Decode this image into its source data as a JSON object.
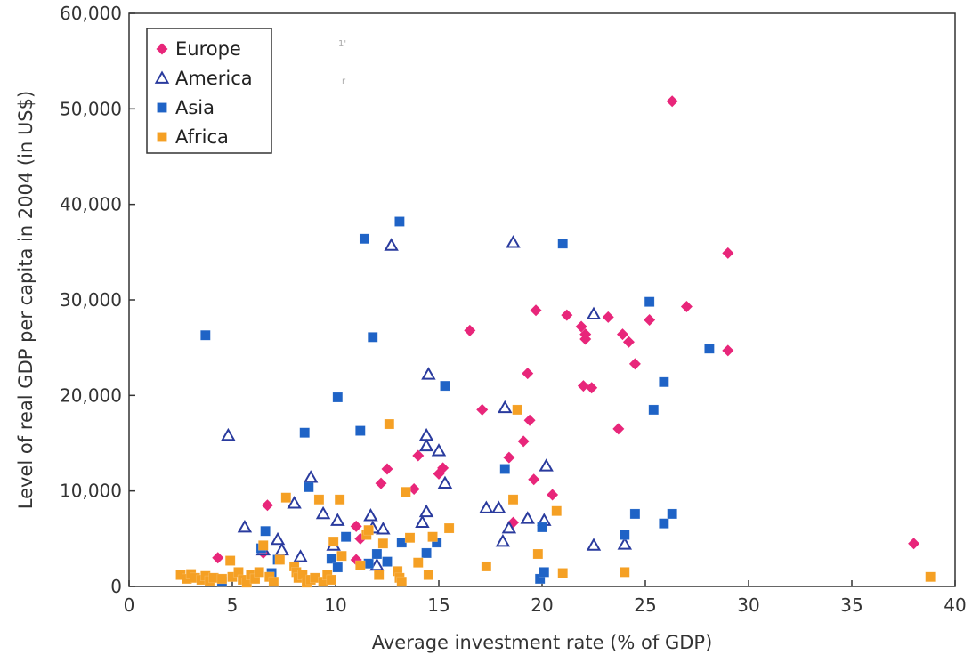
{
  "chart_data": {
    "type": "scatter",
    "xlabel": "Average investment rate (% of GDP)",
    "ylabel": "Level of real GDP per capita in 2004 (in US$)",
    "xlim": [
      0,
      40
    ],
    "ylim": [
      0,
      60000
    ],
    "x_ticks": [
      "0",
      "5",
      "10",
      "15",
      "20",
      "25",
      "30",
      "35",
      "40"
    ],
    "y_ticks": [
      "0",
      "10,000",
      "20,000",
      "30,000",
      "40,000",
      "50,000",
      "60,000"
    ],
    "grid": false,
    "legend_position": "top-left",
    "series": [
      {
        "name": "Europe",
        "marker": "diamond",
        "color": "#e8267a",
        "points": [
          [
            4.3,
            3000
          ],
          [
            6.5,
            3500
          ],
          [
            6.7,
            8500
          ],
          [
            11,
            6300
          ],
          [
            11,
            2800
          ],
          [
            11.2,
            5000
          ],
          [
            12.2,
            10800
          ],
          [
            12.5,
            12300
          ],
          [
            13.8,
            10200
          ],
          [
            14,
            13700
          ],
          [
            15,
            11800
          ],
          [
            15.2,
            12400
          ],
          [
            16.5,
            26800
          ],
          [
            17.1,
            18500
          ],
          [
            18.4,
            13500
          ],
          [
            18.6,
            6700
          ],
          [
            19.1,
            15200
          ],
          [
            19.3,
            22300
          ],
          [
            19.4,
            17400
          ],
          [
            19.6,
            11200
          ],
          [
            19.7,
            28900
          ],
          [
            20.5,
            9600
          ],
          [
            21.2,
            28400
          ],
          [
            21.9,
            27200
          ],
          [
            22,
            21000
          ],
          [
            22.1,
            26400
          ],
          [
            22.1,
            25900
          ],
          [
            22.4,
            20800
          ],
          [
            23.2,
            28200
          ],
          [
            23.7,
            16500
          ],
          [
            23.9,
            26400
          ],
          [
            24.2,
            25600
          ],
          [
            24.5,
            23300
          ],
          [
            25.2,
            27900
          ],
          [
            26.3,
            50800
          ],
          [
            27,
            29300
          ],
          [
            29,
            24700
          ],
          [
            29,
            34900
          ],
          [
            38,
            4500
          ]
        ]
      },
      {
        "name": "America",
        "marker": "triangle",
        "color": "#2a3b9e",
        "points": [
          [
            4.8,
            15800
          ],
          [
            5.6,
            6200
          ],
          [
            6.5,
            3800
          ],
          [
            7.2,
            4900
          ],
          [
            7.4,
            3800
          ],
          [
            8,
            8700
          ],
          [
            8.3,
            3100
          ],
          [
            8.8,
            11400
          ],
          [
            9.4,
            7600
          ],
          [
            9.9,
            4300
          ],
          [
            10.1,
            6900
          ],
          [
            11.7,
            7400
          ],
          [
            11.8,
            6100
          ],
          [
            12,
            2200
          ],
          [
            12.3,
            6000
          ],
          [
            12.7,
            35700
          ],
          [
            14.2,
            6700
          ],
          [
            14.4,
            7800
          ],
          [
            14.4,
            15800
          ],
          [
            14.4,
            14700
          ],
          [
            14.5,
            22200
          ],
          [
            15,
            14200
          ],
          [
            15.3,
            10800
          ],
          [
            17.3,
            8200
          ],
          [
            17.9,
            8200
          ],
          [
            18.1,
            4700
          ],
          [
            18.2,
            18700
          ],
          [
            18.4,
            6100
          ],
          [
            18.6,
            36000
          ],
          [
            19.3,
            7100
          ],
          [
            20.1,
            6900
          ],
          [
            20.2,
            12600
          ],
          [
            22.5,
            28500
          ],
          [
            22.5,
            4300
          ],
          [
            24,
            4400
          ]
        ]
      },
      {
        "name": "Asia",
        "marker": "square",
        "color": "#1f63c6",
        "points": [
          [
            3.7,
            26300
          ],
          [
            4.5,
            500
          ],
          [
            6.4,
            4000
          ],
          [
            6.6,
            5800
          ],
          [
            6.9,
            1400
          ],
          [
            7.2,
            2800
          ],
          [
            8.5,
            16100
          ],
          [
            8.7,
            10400
          ],
          [
            9.8,
            2900
          ],
          [
            10.1,
            2000
          ],
          [
            10.1,
            19800
          ],
          [
            10.5,
            5200
          ],
          [
            11.2,
            16300
          ],
          [
            11.4,
            36400
          ],
          [
            11.6,
            2400
          ],
          [
            11.8,
            26100
          ],
          [
            12,
            3400
          ],
          [
            12.5,
            2600
          ],
          [
            13.1,
            38200
          ],
          [
            13.2,
            4600
          ],
          [
            14.4,
            3500
          ],
          [
            14.9,
            4600
          ],
          [
            15.3,
            21000
          ],
          [
            18.2,
            12300
          ],
          [
            19.9,
            800
          ],
          [
            20,
            6200
          ],
          [
            20.1,
            1500
          ],
          [
            21,
            35900
          ],
          [
            24,
            5400
          ],
          [
            24.5,
            7600
          ],
          [
            25.2,
            29800
          ],
          [
            25.4,
            18500
          ],
          [
            25.9,
            21400
          ],
          [
            25.9,
            6600
          ],
          [
            26.3,
            7600
          ],
          [
            28.1,
            24900
          ]
        ]
      },
      {
        "name": "Africa",
        "marker": "square",
        "color": "#f5a024",
        "points": [
          [
            2.5,
            1200
          ],
          [
            2.8,
            800
          ],
          [
            3,
            1300
          ],
          [
            3.2,
            900
          ],
          [
            3.5,
            700
          ],
          [
            3.7,
            1100
          ],
          [
            3.9,
            600
          ],
          [
            4.1,
            900
          ],
          [
            4.5,
            800
          ],
          [
            4.9,
            2700
          ],
          [
            5,
            1000
          ],
          [
            5.3,
            1500
          ],
          [
            5.5,
            700
          ],
          [
            5.7,
            400
          ],
          [
            5.9,
            1200
          ],
          [
            6.1,
            800
          ],
          [
            6.3,
            1500
          ],
          [
            6.5,
            4300
          ],
          [
            6.8,
            1000
          ],
          [
            7,
            500
          ],
          [
            7.3,
            2800
          ],
          [
            7.6,
            9300
          ],
          [
            8,
            2100
          ],
          [
            8.1,
            1500
          ],
          [
            8.2,
            900
          ],
          [
            8.4,
            1200
          ],
          [
            8.6,
            400
          ],
          [
            8.8,
            700
          ],
          [
            9,
            900
          ],
          [
            9.2,
            9100
          ],
          [
            9.4,
            500
          ],
          [
            9.6,
            1200
          ],
          [
            9.8,
            700
          ],
          [
            9.9,
            4700
          ],
          [
            10.2,
            9100
          ],
          [
            10.3,
            3200
          ],
          [
            11.2,
            2200
          ],
          [
            11.5,
            5400
          ],
          [
            11.6,
            5900
          ],
          [
            12.1,
            1200
          ],
          [
            12.3,
            4500
          ],
          [
            12.6,
            17000
          ],
          [
            13,
            1600
          ],
          [
            13.1,
            900
          ],
          [
            13.2,
            500
          ],
          [
            13.4,
            9900
          ],
          [
            13.6,
            5100
          ],
          [
            14,
            2500
          ],
          [
            14.5,
            1200
          ],
          [
            14.7,
            5200
          ],
          [
            15.5,
            6100
          ],
          [
            17.3,
            2100
          ],
          [
            18.6,
            9100
          ],
          [
            18.8,
            18500
          ],
          [
            19.8,
            3400
          ],
          [
            20.7,
            7900
          ],
          [
            21,
            1400
          ],
          [
            24,
            1500
          ],
          [
            38.8,
            1000
          ]
        ]
      }
    ]
  },
  "faint_marks": [
    "1'",
    "r"
  ]
}
